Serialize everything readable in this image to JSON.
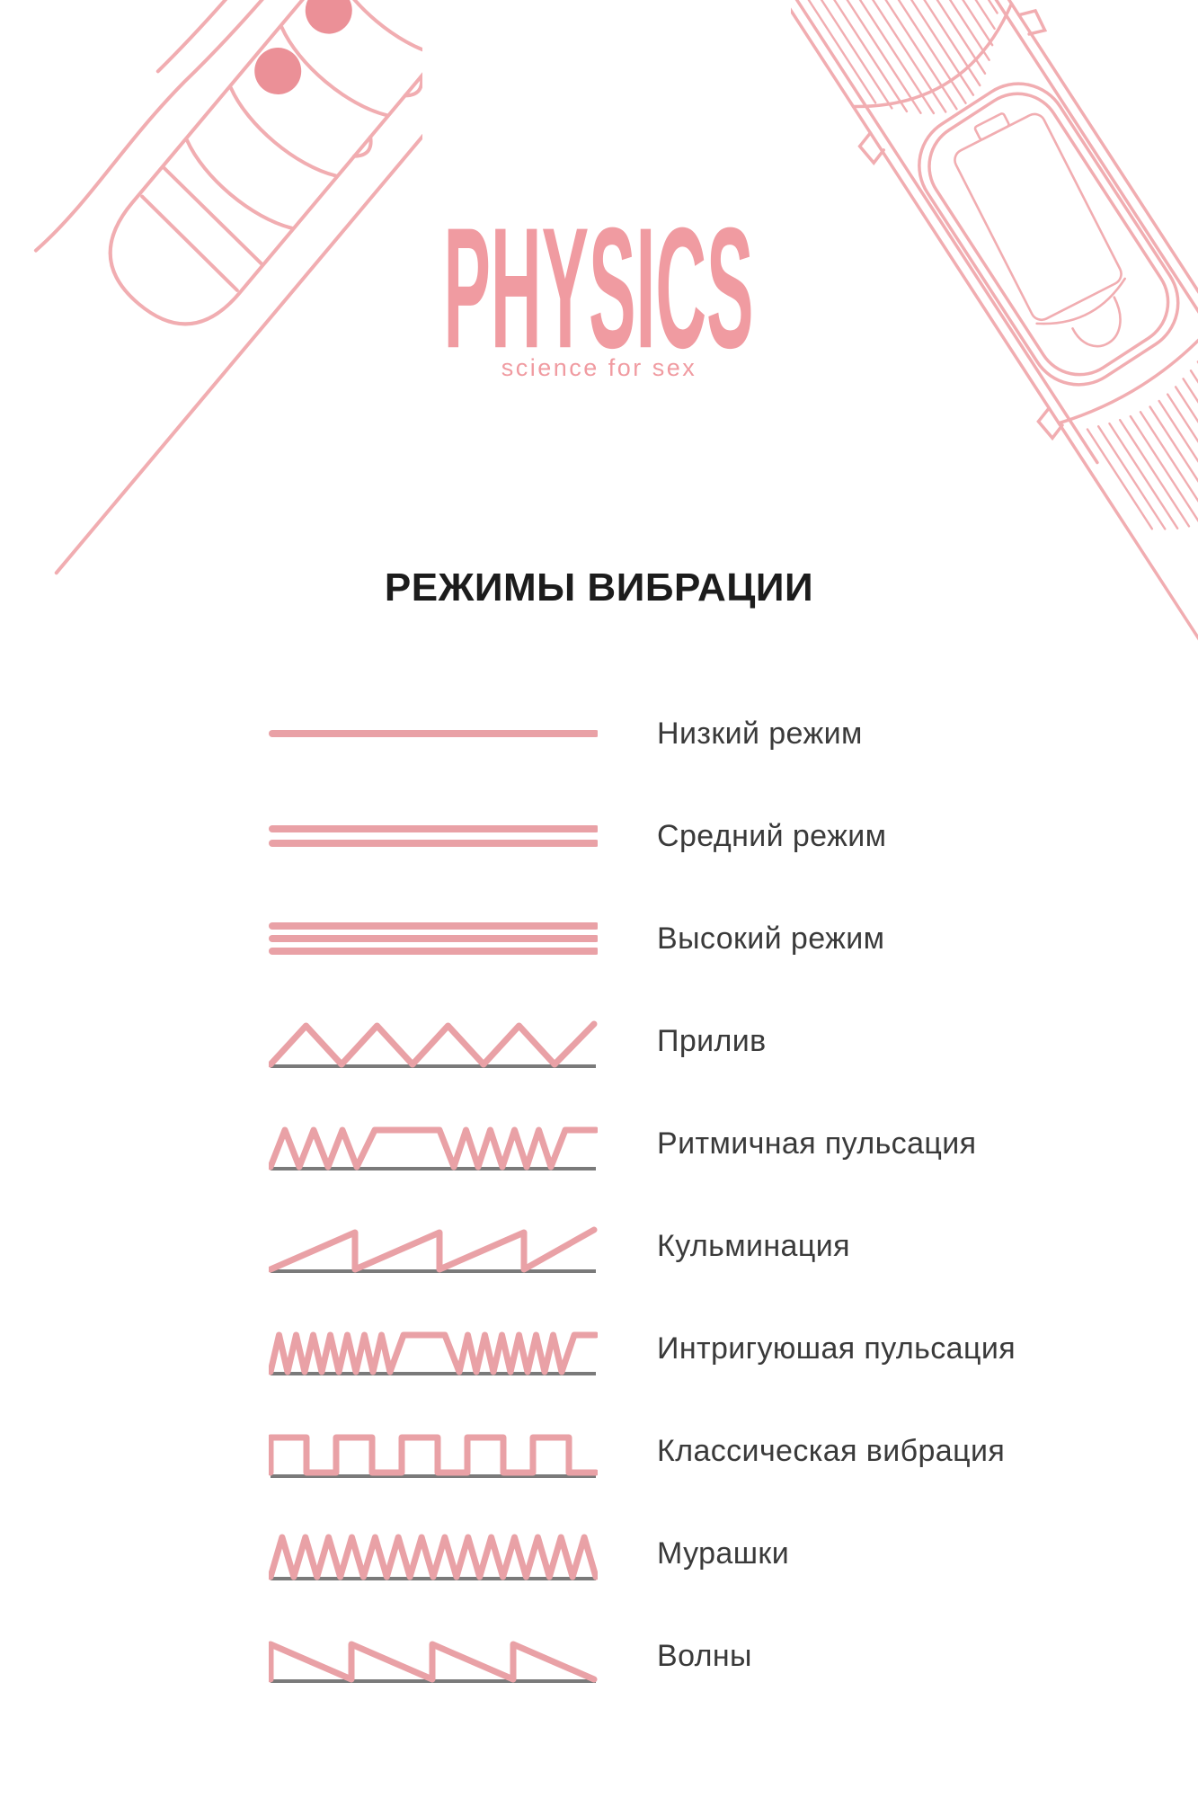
{
  "brand": {
    "logo": "PHYSICS",
    "tagline": "science for sex"
  },
  "heading": "РЕЖИМЫ ВИБРАЦИИ",
  "modes": [
    {
      "label": "Низкий режим",
      "wave": "low"
    },
    {
      "label": "Средний режим",
      "wave": "medium"
    },
    {
      "label": "Высокий режим",
      "wave": "high"
    },
    {
      "label": "Прилив",
      "wave": "triangle"
    },
    {
      "label": "Ритмичная пульсация",
      "wave": "rhythmic"
    },
    {
      "label": "Кульминация",
      "wave": "sawtooth-rising"
    },
    {
      "label": "Интригуюшая пульсация",
      "wave": "intriguing"
    },
    {
      "label": "Классическая вибрация",
      "wave": "square"
    },
    {
      "label": "Мурашки",
      "wave": "goosebumps"
    },
    {
      "label": "Волны",
      "wave": "sawtooth-falling"
    }
  ],
  "illustrations": {
    "top_left": "ribbed-vibrator-line-art",
    "top_right": "vibrator-battery-compartment-line-art"
  },
  "colors": {
    "accent": "#e9a1a6",
    "line_art": "#f1adb1",
    "dot": "#eb9097",
    "baseline": "#7a7a7a",
    "heading": "#1c1c1c",
    "label": "#3a3a3a",
    "logo": "#f09ba1"
  }
}
